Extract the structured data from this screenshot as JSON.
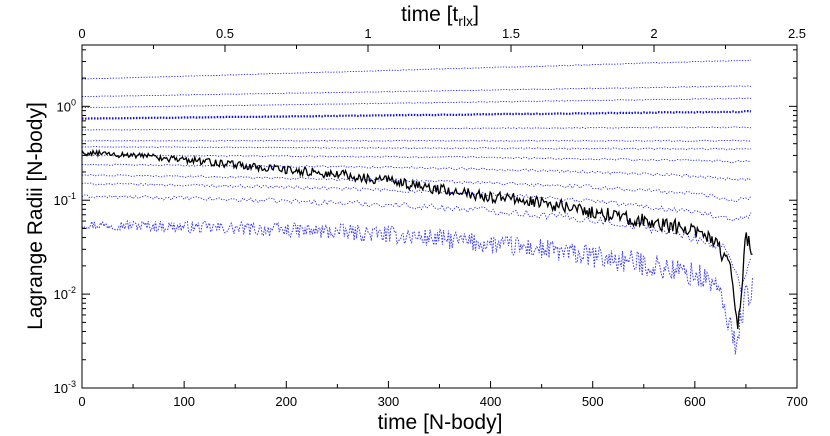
{
  "chart_data": {
    "type": "line",
    "title": "",
    "xlabel": "time [N-body]",
    "x2label_main": "time [t",
    "x2label_sub": "rlx",
    "x2label_end": "]",
    "ylabel": "Lagrange Radii [N-body]",
    "yscale": "log",
    "xlim": [
      0,
      700
    ],
    "x2lim": [
      0,
      2.5
    ],
    "ylim": [
      0.001,
      4.5
    ],
    "grid": false,
    "legend": "none",
    "xticks": [
      {
        "value": 0,
        "label": "0"
      },
      {
        "value": 100,
        "label": "100"
      },
      {
        "value": 200,
        "label": "200"
      },
      {
        "value": 300,
        "label": "300"
      },
      {
        "value": 400,
        "label": "400"
      },
      {
        "value": 500,
        "label": "500"
      },
      {
        "value": 600,
        "label": "600"
      },
      {
        "value": 700,
        "label": "700"
      }
    ],
    "x2ticks": [
      {
        "value": 0,
        "label": "0"
      },
      {
        "value": 0.5,
        "label": "0.5"
      },
      {
        "value": 1,
        "label": "1"
      },
      {
        "value": 1.5,
        "label": "1.5"
      },
      {
        "value": 2,
        "label": "2"
      },
      {
        "value": 2.5,
        "label": "2.5"
      }
    ],
    "yticks": [
      {
        "value": 0.001,
        "base": "10",
        "exp": "-3"
      },
      {
        "value": 0.01,
        "base": "10",
        "exp": "-2"
      },
      {
        "value": 0.1,
        "base": "10",
        "exp": "-1"
      },
      {
        "value": 1,
        "base": "10",
        "exp": "0"
      }
    ],
    "series": [
      {
        "name": "lagrange-radius-1",
        "style": "core",
        "x": [
          0,
          50,
          100,
          150,
          200,
          250,
          300,
          350,
          400,
          450,
          500,
          550,
          600,
          620,
          640,
          650,
          657
        ],
        "y": [
          0.055,
          0.054,
          0.052,
          0.05,
          0.048,
          0.046,
          0.043,
          0.039,
          0.034,
          0.03,
          0.025,
          0.021,
          0.016,
          0.013,
          0.003,
          0.01,
          0.011
        ],
        "noise": 0.22
      },
      {
        "name": "lagrange-radius-2",
        "style": "minor",
        "x": [
          0,
          100,
          200,
          300,
          400,
          500,
          550,
          600,
          630,
          645,
          657
        ],
        "y": [
          0.11,
          0.105,
          0.098,
          0.09,
          0.078,
          0.062,
          0.052,
          0.04,
          0.03,
          0.012,
          0.03
        ],
        "noise": 0.08
      },
      {
        "name": "lagrange-radius-3",
        "style": "minor",
        "x": [
          0,
          100,
          200,
          300,
          400,
          500,
          600,
          640,
          657
        ],
        "y": [
          0.15,
          0.145,
          0.138,
          0.128,
          0.115,
          0.098,
          0.075,
          0.06,
          0.07
        ],
        "noise": 0.05
      },
      {
        "name": "lagrange-radius-4",
        "style": "minor",
        "x": [
          0,
          100,
          200,
          300,
          400,
          500,
          600,
          640,
          657
        ],
        "y": [
          0.185,
          0.18,
          0.172,
          0.164,
          0.152,
          0.138,
          0.118,
          0.1,
          0.11
        ],
        "noise": 0.04
      },
      {
        "name": "lagrange-radius-5",
        "style": "minor",
        "x": [
          0,
          100,
          200,
          300,
          400,
          500,
          600,
          657
        ],
        "y": [
          0.24,
          0.235,
          0.23,
          0.225,
          0.215,
          0.2,
          0.18,
          0.165
        ],
        "noise": 0.03
      },
      {
        "name": "lagrange-radius-6",
        "style": "minor",
        "x": [
          0,
          100,
          200,
          300,
          400,
          500,
          600,
          657
        ],
        "y": [
          0.3,
          0.298,
          0.295,
          0.29,
          0.285,
          0.275,
          0.265,
          0.255
        ],
        "noise": 0.02
      },
      {
        "name": "lagrange-radius-7",
        "style": "minor",
        "x": [
          0,
          657
        ],
        "y": [
          0.37,
          0.35
        ],
        "noise": 0.015
      },
      {
        "name": "lagrange-radius-8",
        "style": "minor",
        "x": [
          0,
          657
        ],
        "y": [
          0.43,
          0.43
        ],
        "noise": 0.012
      },
      {
        "name": "lagrange-radius-9",
        "style": "minor",
        "x": [
          0,
          657
        ],
        "y": [
          0.56,
          0.6
        ],
        "noise": 0.01
      },
      {
        "name": "half-mass-radius",
        "style": "half",
        "x": [
          0,
          657
        ],
        "y": [
          0.74,
          0.88
        ],
        "noise": 0.008
      },
      {
        "name": "lagrange-radius-11",
        "style": "minor",
        "x": [
          0,
          657
        ],
        "y": [
          0.97,
          1.22
        ],
        "noise": 0.008
      },
      {
        "name": "lagrange-radius-12",
        "style": "minor",
        "x": [
          0,
          657
        ],
        "y": [
          1.27,
          1.65
        ],
        "noise": 0.008
      },
      {
        "name": "lagrange-radius-13",
        "style": "minor",
        "x": [
          0,
          657
        ],
        "y": [
          1.95,
          3.1
        ],
        "noise": 0.008
      },
      {
        "name": "core-radius",
        "style": "rc",
        "x": [
          0,
          50,
          100,
          150,
          200,
          250,
          300,
          350,
          400,
          450,
          500,
          550,
          600,
          620,
          635,
          642,
          650,
          657
        ],
        "y": [
          0.32,
          0.3,
          0.27,
          0.24,
          0.21,
          0.19,
          0.16,
          0.13,
          0.11,
          0.095,
          0.075,
          0.06,
          0.048,
          0.035,
          0.02,
          0.004,
          0.04,
          0.03
        ],
        "noise": 0.13
      }
    ]
  }
}
